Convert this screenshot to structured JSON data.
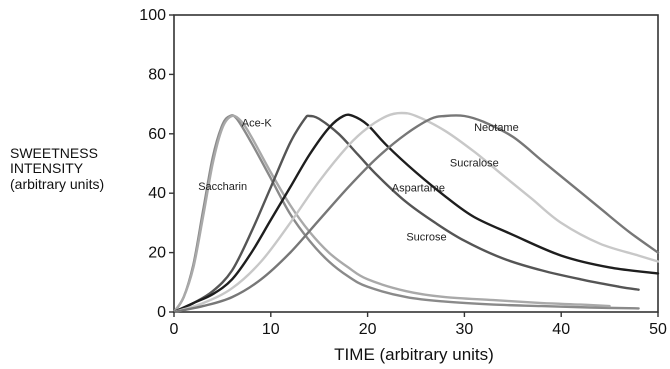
{
  "chart_data": {
    "type": "line",
    "title": "",
    "xlabel": "TIME (arbitrary units)",
    "ylabel_lines": [
      "SWEETNESS",
      "INTENSITY",
      "(arbitrary units)"
    ],
    "xlim": [
      0,
      50
    ],
    "ylim": [
      0,
      100
    ],
    "xticks": [
      0,
      10,
      20,
      30,
      40,
      50
    ],
    "yticks": [
      0,
      20,
      40,
      60,
      80,
      100
    ],
    "grid": false,
    "legend": "none",
    "series": [
      {
        "name": "Saccharin",
        "color": "#8a8a8a",
        "points": [
          [
            0,
            0
          ],
          [
            1,
            5
          ],
          [
            2,
            16
          ],
          [
            3,
            34
          ],
          [
            4,
            52
          ],
          [
            5,
            63
          ],
          [
            5.8,
            66
          ],
          [
            6.5,
            65
          ],
          [
            8,
            57
          ],
          [
            10,
            45
          ],
          [
            12,
            33
          ],
          [
            14,
            24
          ],
          [
            16,
            17
          ],
          [
            18,
            12
          ],
          [
            20,
            8.5
          ],
          [
            24,
            5
          ],
          [
            28,
            3.5
          ],
          [
            33,
            2.5
          ],
          [
            38,
            2
          ],
          [
            43,
            1.5
          ],
          [
            48,
            1.2
          ]
        ]
      },
      {
        "name": "Ace-K",
        "color": "#a9a9a9",
        "points": [
          [
            0,
            0
          ],
          [
            1,
            5
          ],
          [
            2,
            15
          ],
          [
            3,
            32
          ],
          [
            4,
            50
          ],
          [
            5,
            62
          ],
          [
            6,
            66
          ],
          [
            7,
            64
          ],
          [
            8,
            59
          ],
          [
            10,
            47
          ],
          [
            12,
            36
          ],
          [
            14,
            27
          ],
          [
            16,
            20
          ],
          [
            18,
            15
          ],
          [
            20,
            11
          ],
          [
            24,
            7
          ],
          [
            28,
            5
          ],
          [
            33,
            4
          ],
          [
            38,
            3
          ],
          [
            42,
            2.5
          ],
          [
            45,
            2
          ]
        ]
      },
      {
        "name": "",
        "color": "#555555",
        "points": [
          [
            0,
            0
          ],
          [
            2,
            3
          ],
          [
            4,
            7
          ],
          [
            6,
            14
          ],
          [
            8,
            27
          ],
          [
            10,
            42
          ],
          [
            12,
            57
          ],
          [
            13.5,
            65
          ],
          [
            14,
            66
          ],
          [
            15,
            65
          ],
          [
            17,
            60
          ],
          [
            19,
            53
          ],
          [
            21,
            46
          ],
          [
            24,
            37
          ],
          [
            27,
            30
          ],
          [
            30,
            24
          ],
          [
            34,
            18
          ],
          [
            38,
            14
          ],
          [
            42,
            11
          ],
          [
            46,
            8.5
          ],
          [
            48,
            7.5
          ]
        ]
      },
      {
        "name": "Aspartame",
        "color": "#1e1e1e",
        "points": [
          [
            0,
            0
          ],
          [
            2,
            3
          ],
          [
            4,
            6
          ],
          [
            6,
            11
          ],
          [
            8,
            20
          ],
          [
            10,
            31
          ],
          [
            12,
            42
          ],
          [
            14,
            53
          ],
          [
            16,
            62
          ],
          [
            17.5,
            66
          ],
          [
            18.5,
            66
          ],
          [
            20,
            63
          ],
          [
            22,
            56
          ],
          [
            25,
            47
          ],
          [
            28,
            39
          ],
          [
            31,
            32
          ],
          [
            35,
            26
          ],
          [
            40,
            19
          ],
          [
            45,
            15
          ],
          [
            50,
            13
          ]
        ]
      },
      {
        "name": "Sucralose",
        "color": "#c8c8c8",
        "points": [
          [
            0,
            0
          ],
          [
            3,
            3
          ],
          [
            6,
            8
          ],
          [
            9,
            17
          ],
          [
            12,
            30
          ],
          [
            15,
            44
          ],
          [
            18,
            56
          ],
          [
            20,
            62
          ],
          [
            22,
            66
          ],
          [
            23.5,
            67
          ],
          [
            25,
            66
          ],
          [
            28,
            61
          ],
          [
            31,
            54
          ],
          [
            34,
            46
          ],
          [
            37,
            38
          ],
          [
            40,
            30
          ],
          [
            44,
            23
          ],
          [
            48,
            19
          ],
          [
            50,
            17
          ]
        ]
      },
      {
        "name": "Neotame",
        "color": "#777777",
        "points": [
          [
            0,
            0
          ],
          [
            3,
            2
          ],
          [
            6,
            5
          ],
          [
            9,
            11
          ],
          [
            12,
            20
          ],
          [
            15,
            31
          ],
          [
            18,
            42
          ],
          [
            21,
            52
          ],
          [
            24,
            60
          ],
          [
            26.5,
            65
          ],
          [
            28,
            66
          ],
          [
            30,
            66
          ],
          [
            32,
            64
          ],
          [
            35,
            59
          ],
          [
            38,
            51
          ],
          [
            41,
            43
          ],
          [
            44,
            35
          ],
          [
            47,
            27
          ],
          [
            50,
            20
          ]
        ]
      }
    ],
    "annotations": [
      {
        "text": "Ace-K",
        "x": 7,
        "y": 62.5,
        "anchor": "start"
      },
      {
        "text": "Neotame",
        "x": 31,
        "y": 61,
        "anchor": "start"
      },
      {
        "text": "Sucralose",
        "x": 28.5,
        "y": 49,
        "anchor": "start"
      },
      {
        "text": "Saccharin",
        "x": 2.5,
        "y": 41,
        "anchor": "start"
      },
      {
        "text": "Aspartame",
        "x": 22.5,
        "y": 40.5,
        "anchor": "start"
      },
      {
        "text": "Sucrose",
        "x": 24,
        "y": 24,
        "anchor": "start"
      }
    ]
  }
}
